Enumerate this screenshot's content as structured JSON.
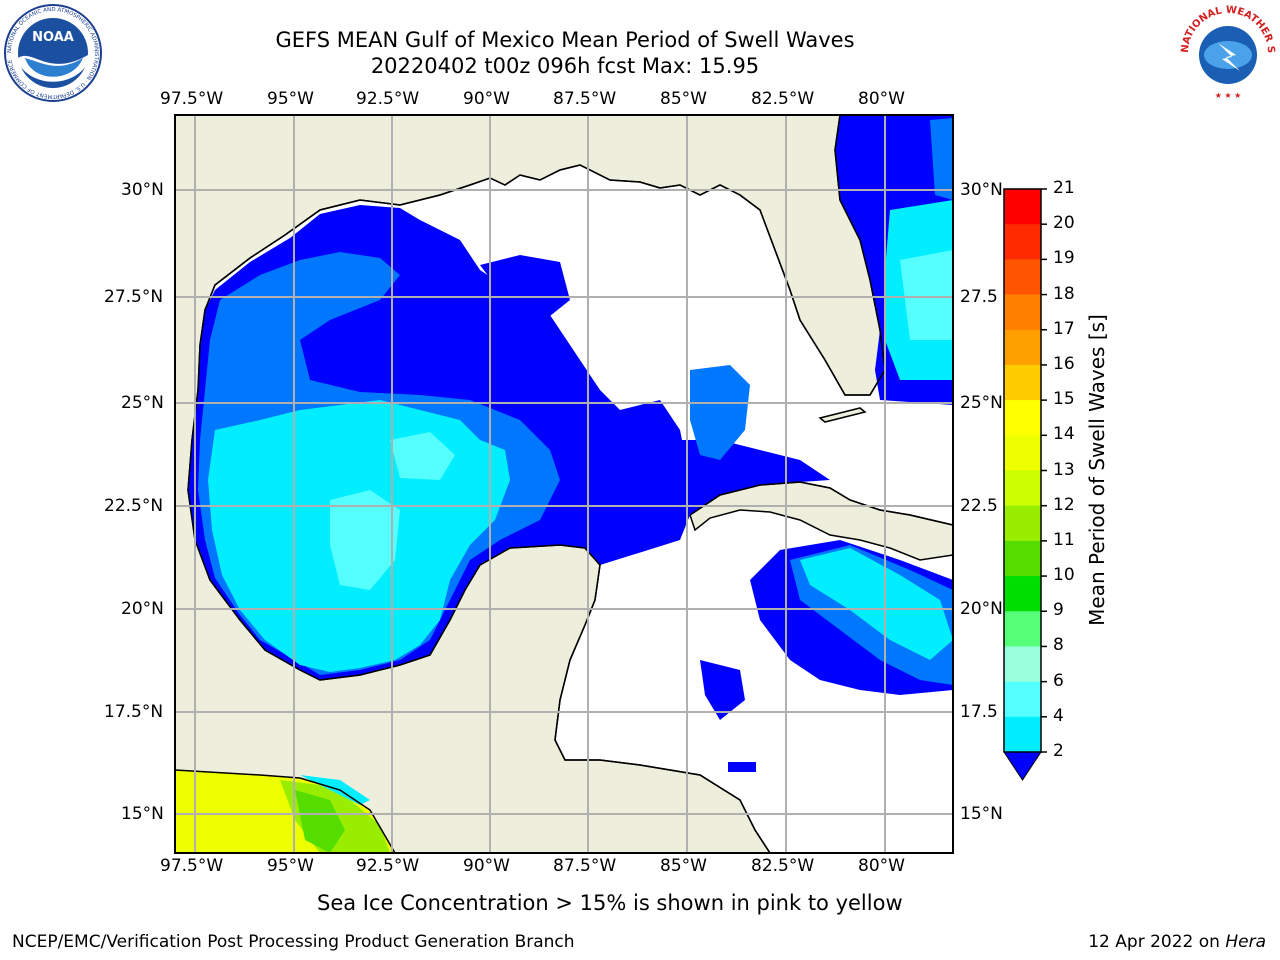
{
  "header": {
    "title_line1": "GEFS MEAN Gulf of Mexico Mean Period of Swell Waves",
    "title_line2": "20220402 t00z 096h fcst   Max: 15.95"
  },
  "logos": {
    "noaa_text": "NOAA",
    "noaa_ring_text": "NATIONAL OCEANIC AND ATMOSPHERIC ADMINISTRATION · U.S. DEPARTMENT OF COMMERCE",
    "nws_ring_text": "NATIONAL WEATHER SERVICE"
  },
  "axes": {
    "lon_labels": [
      "97.5°W",
      "95°W",
      "92.5°W",
      "90°W",
      "87.5°W",
      "85°W",
      "82.5°W",
      "80°W"
    ],
    "lat_labels_left": [
      "30°N",
      "27.5°N",
      "25°N",
      "22.5°N",
      "20°N",
      "17.5°N",
      "15°N"
    ],
    "lat_labels_right": [
      "30°N",
      "27.5",
      "25°N",
      "22.5",
      "20°N",
      "17.5",
      "15°N"
    ]
  },
  "colorbar": {
    "title": "Mean Period of Swell Waves [s]",
    "ticks": [
      "21",
      "20",
      "19",
      "18",
      "17",
      "16",
      "15",
      "14",
      "13",
      "12",
      "11",
      "10",
      "9",
      "8",
      "6",
      "4",
      "2"
    ],
    "colors": [
      "#ff0000",
      "#ff2a00",
      "#ff5500",
      "#ff7f00",
      "#ffa000",
      "#ffcc00",
      "#ffff00",
      "#eeff00",
      "#ccff00",
      "#99ee00",
      "#55dd00",
      "#00dd00",
      "#55ff77",
      "#99ffdd",
      "#55ffff",
      "#00eeff",
      "#0077ff",
      "#0000ff"
    ]
  },
  "palette": {
    "land": "#eeeedd",
    "ocean_low": "#0000ff",
    "ocean_2_4": "#0077ff",
    "ocean_4_6": "#00eeff",
    "ocean_6_8": "#55ffff",
    "ice_yellow": "#eeff00"
  },
  "notes": {
    "sea_ice": "Sea Ice Concentration > 15% is shown in pink to yellow"
  },
  "footer": {
    "left": "NCEP/EMC/Verification Post Processing Product Generation Branch",
    "right_date": "12 Apr 2022 on ",
    "right_host": "Hera"
  }
}
